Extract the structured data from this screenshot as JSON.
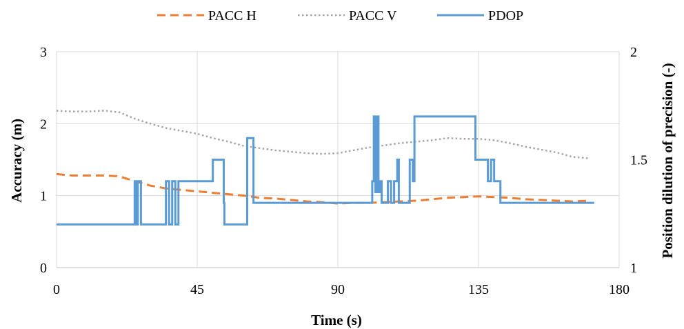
{
  "chart_data": {
    "type": "line",
    "title": "",
    "xlabel": "Time (s)",
    "ylabel": "Accuracy (m)",
    "y2label": "Position dilution of precision (-)",
    "xlim": [
      0,
      180
    ],
    "ylim": [
      0,
      3
    ],
    "y2lim": [
      1,
      2
    ],
    "xticks": [
      "0",
      "45",
      "90",
      "135",
      "180"
    ],
    "yticks": [
      "0",
      "1",
      "2",
      "3"
    ],
    "y2ticks": [
      "1",
      "1.5",
      "2"
    ],
    "grid": true,
    "legend_position": "top",
    "series": [
      {
        "name": "PACC H",
        "axis": "left",
        "style": "dashed",
        "color": "#ED7D31",
        "x": [
          0,
          5,
          10,
          15,
          20,
          25,
          30,
          35,
          40,
          45,
          50,
          55,
          60,
          65,
          70,
          75,
          80,
          85,
          90,
          95,
          100,
          105,
          110,
          115,
          120,
          125,
          130,
          135,
          140,
          145,
          150,
          155,
          160,
          165,
          170
        ],
        "y": [
          1.3,
          1.28,
          1.28,
          1.28,
          1.27,
          1.2,
          1.14,
          1.1,
          1.08,
          1.06,
          1.04,
          1.02,
          1.0,
          0.97,
          0.96,
          0.94,
          0.92,
          0.91,
          0.89,
          0.9,
          0.9,
          0.91,
          0.92,
          0.93,
          0.95,
          0.97,
          0.98,
          0.99,
          0.98,
          0.97,
          0.95,
          0.94,
          0.93,
          0.92,
          0.93
        ]
      },
      {
        "name": "PACC V",
        "axis": "left",
        "style": "dotted",
        "color": "#A5A5A5",
        "x": [
          0,
          5,
          10,
          15,
          20,
          25,
          30,
          35,
          40,
          45,
          50,
          55,
          60,
          65,
          70,
          75,
          80,
          85,
          90,
          95,
          100,
          105,
          110,
          115,
          120,
          125,
          130,
          135,
          140,
          145,
          150,
          155,
          160,
          165,
          170
        ],
        "y": [
          2.18,
          2.17,
          2.17,
          2.18,
          2.16,
          2.07,
          2.0,
          1.94,
          1.9,
          1.86,
          1.8,
          1.75,
          1.69,
          1.66,
          1.63,
          1.61,
          1.59,
          1.58,
          1.59,
          1.63,
          1.67,
          1.7,
          1.73,
          1.75,
          1.77,
          1.8,
          1.79,
          1.79,
          1.77,
          1.73,
          1.68,
          1.64,
          1.6,
          1.54,
          1.52
        ]
      },
      {
        "name": "PDOP",
        "axis": "right",
        "style": "step",
        "color": "#5B9BD5",
        "x": [
          0,
          25,
          25,
          25.5,
          25.5,
          26,
          26,
          27,
          27,
          35,
          35,
          36,
          36,
          37,
          37,
          38,
          38,
          39,
          39,
          50,
          50,
          53.5,
          53.5,
          53.7,
          53.7,
          61,
          61,
          63,
          63,
          101,
          101,
          101.5,
          101.5,
          102,
          102,
          102.5,
          102.5,
          103,
          103,
          103.5,
          103.5,
          104,
          104,
          106,
          106,
          107,
          107,
          108,
          108,
          109,
          109,
          109.5,
          109.5,
          110,
          110,
          113,
          113,
          114,
          114,
          114.5,
          114.5,
          115,
          115,
          116,
          116,
          134,
          134,
          138,
          138,
          139,
          139,
          140,
          140,
          142,
          142,
          172
        ],
        "y": [
          1.2,
          1.2,
          1.4,
          1.4,
          1.2,
          1.2,
          1.4,
          1.4,
          1.2,
          1.2,
          1.4,
          1.4,
          1.2,
          1.2,
          1.4,
          1.4,
          1.2,
          1.2,
          1.4,
          1.4,
          1.5,
          1.5,
          1.3,
          1.3,
          1.2,
          1.2,
          1.6,
          1.6,
          1.3,
          1.3,
          1.4,
          1.4,
          1.7,
          1.7,
          1.35,
          1.35,
          1.7,
          1.7,
          1.35,
          1.35,
          1.4,
          1.4,
          1.3,
          1.3,
          1.4,
          1.4,
          1.3,
          1.3,
          1.4,
          1.4,
          1.5,
          1.5,
          1.3,
          1.3,
          1.3,
          1.3,
          1.5,
          1.5,
          1.4,
          1.4,
          1.7,
          1.7,
          1.7,
          1.7,
          1.7,
          1.7,
          1.5,
          1.5,
          1.4,
          1.4,
          1.5,
          1.5,
          1.4,
          1.4,
          1.3,
          1.3
        ]
      }
    ]
  },
  "legend": {
    "items": [
      {
        "label": "PACC H",
        "color": "#ED7D31",
        "style": "dashed"
      },
      {
        "label": "PACC V",
        "color": "#A5A5A5",
        "style": "dotted"
      },
      {
        "label": "PDOP",
        "color": "#5B9BD5",
        "style": "solid"
      }
    ]
  }
}
